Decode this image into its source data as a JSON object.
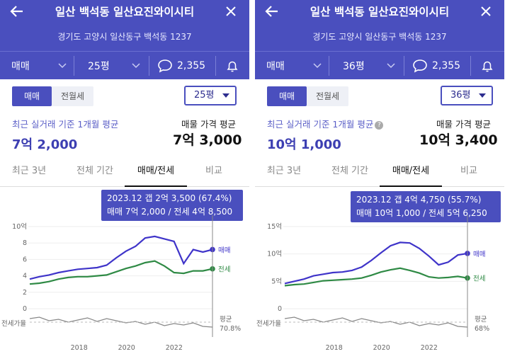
{
  "panels": [
    {
      "title": "일산 백석동 일산요진와이시티",
      "address": "경기도 고양시 일산동구 백석동 1237",
      "toolbar": {
        "deal_type": "매매",
        "size": "25평",
        "comments": "2,355"
      },
      "toggle": {
        "sale": "매매",
        "rent": "전월세"
      },
      "size_select": "25평",
      "recent": {
        "label": "최근 실거래 기준 1개월 평균",
        "value": "7억 2,000"
      },
      "asking": {
        "label": "매물 가격 평균",
        "value": "7억 3,000"
      },
      "tabs": [
        "최근 3년",
        "전체 기간",
        "매매/전세",
        "비교"
      ],
      "active_tab": 2,
      "tooltip": {
        "line1": "2023.12  갭 2억 3,500 (67.4%)",
        "line2": "매매 7억 2,000 / 전세 4억 8,500"
      },
      "chart": {
        "y_ticks": [
          "10억",
          "8",
          "6",
          "4",
          "2",
          "0"
        ],
        "x_ticks": [
          "2018",
          "2020",
          "2022"
        ],
        "series_labels": {
          "sale": "매매",
          "jeonse": "전세"
        },
        "ratio_label": "전세가율",
        "ratio_avg_label": "평균",
        "ratio_avg_value": "70.8%"
      },
      "chart_data": {
        "type": "line",
        "x": [
          "2016.01",
          "2016.07",
          "2017.01",
          "2017.07",
          "2018.01",
          "2018.07",
          "2019.01",
          "2019.07",
          "2020.01",
          "2020.07",
          "2021.01",
          "2021.07",
          "2022.01",
          "2022.04",
          "2022.07",
          "2022.10",
          "2023.01",
          "2023.04",
          "2023.07",
          "2023.12"
        ],
        "series": [
          {
            "name": "매매",
            "values": [
              3.6,
              3.9,
              4.1,
              4.4,
              4.6,
              4.8,
              4.9,
              5.0,
              5.3,
              6.2,
              7.0,
              7.6,
              8.6,
              8.8,
              8.5,
              8.2,
              5.5,
              7.2,
              6.9,
              7.2
            ]
          },
          {
            "name": "전세",
            "values": [
              3.0,
              3.1,
              3.3,
              3.6,
              3.8,
              3.9,
              3.9,
              4.0,
              4.1,
              4.5,
              4.9,
              5.2,
              5.6,
              5.8,
              5.2,
              4.4,
              4.3,
              4.6,
              4.6,
              4.85
            ]
          }
        ],
        "ylabel": "",
        "ylim": [
          0,
          10
        ],
        "ratio": {
          "name": "전세가율",
          "average": "70.8%"
        }
      }
    },
    {
      "title": "일산 백석동 일산요진와이시티",
      "address": "경기도 고양시 일산동구 백석동 1237",
      "toolbar": {
        "deal_type": "매매",
        "size": "36평",
        "comments": "2,355"
      },
      "toggle": {
        "sale": "매매",
        "rent": "전월세"
      },
      "size_select": "36평",
      "recent": {
        "label": "최근 실거래 기준 1개월 평균",
        "value": "10억 1,000"
      },
      "asking": {
        "label": "매물 가격 평균",
        "value": "10억 3,400"
      },
      "tabs": [
        "최근 3년",
        "전체 기간",
        "매매/전세",
        "비교"
      ],
      "active_tab": 2,
      "tooltip": {
        "line1": "2023.12  갭 4억 4,750 (55.7%)",
        "line2": "매매 10억 1,000 / 전세 5억 6,250"
      },
      "chart": {
        "y_ticks": [
          "15억",
          "10억",
          "5억",
          "0"
        ],
        "x_ticks": [
          "2018",
          "2020",
          "2022"
        ],
        "series_labels": {
          "sale": "매매",
          "jeonse": "전세"
        },
        "ratio_label": "전세가율",
        "ratio_avg_label": "평균",
        "ratio_avg_value": "68%"
      },
      "chart_data": {
        "type": "line",
        "x": [
          "2016.01",
          "2016.07",
          "2017.01",
          "2017.07",
          "2018.01",
          "2018.07",
          "2019.01",
          "2019.07",
          "2020.01",
          "2020.07",
          "2021.01",
          "2021.07",
          "2022.01",
          "2022.04",
          "2022.07",
          "2022.10",
          "2023.01",
          "2023.04",
          "2023.07",
          "2023.12"
        ],
        "series": [
          {
            "name": "매매",
            "values": [
              4.6,
              5.0,
              5.4,
              6.0,
              6.3,
              6.6,
              6.7,
              7.0,
              7.6,
              8.8,
              10.2,
              11.5,
              12.1,
              12.0,
              11.0,
              9.6,
              8.0,
              8.5,
              9.8,
              10.1
            ]
          },
          {
            "name": "전세",
            "values": [
              4.2,
              4.4,
              4.5,
              4.8,
              5.1,
              5.2,
              5.3,
              5.4,
              5.6,
              6.1,
              6.7,
              7.1,
              7.4,
              7.0,
              6.5,
              5.8,
              5.6,
              5.7,
              5.9,
              5.6
            ]
          }
        ],
        "ylabel": "",
        "ylim": [
          0,
          15
        ],
        "ratio": {
          "name": "전세가율",
          "average": "68%"
        }
      }
    }
  ],
  "colors": {
    "header": "#4a4fbe",
    "sale": "#3f34c9",
    "jeonse": "#2f8a45",
    "ratio": "#888888"
  },
  "icons": [
    "back-arrow-icon",
    "close-icon",
    "chevron-down-icon",
    "comment-icon",
    "bell-icon",
    "info-icon"
  ]
}
